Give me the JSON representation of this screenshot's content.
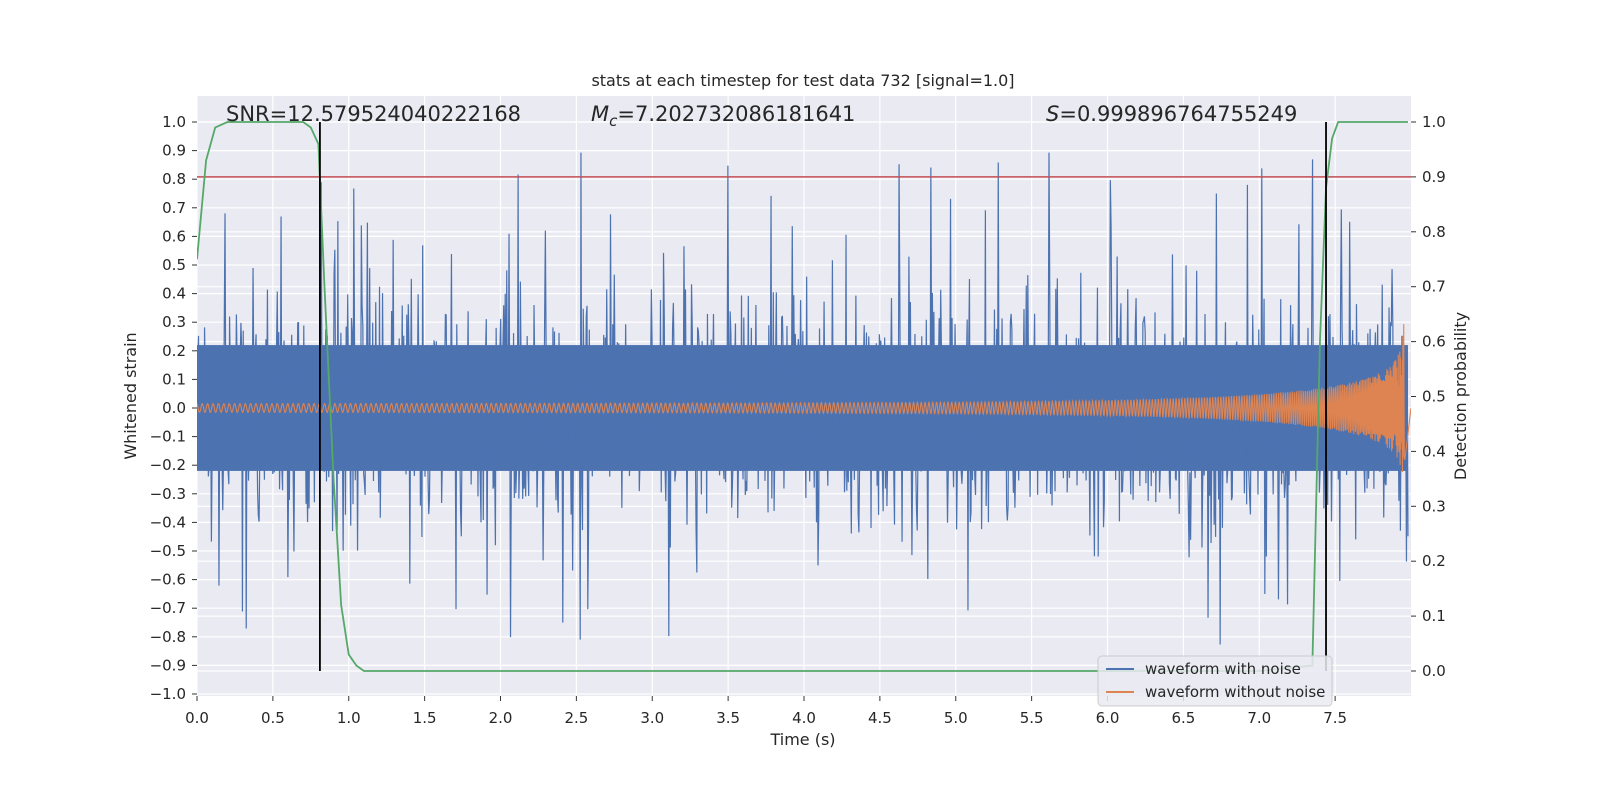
{
  "chart_data": {
    "type": "line",
    "title": "stats at each timestep for test data 732 [signal=1.0]",
    "xlabel": "Time (s)",
    "ylabel": "Whitened strain",
    "y2label": "Detection probability",
    "xlim": [
      0.0,
      8.0
    ],
    "ylim": [
      -1.02,
      1.05
    ],
    "y2lim": [
      -0.05,
      1.05
    ],
    "xticks": [
      "0.0",
      "0.5",
      "1.0",
      "1.5",
      "2.0",
      "2.5",
      "3.0",
      "3.5",
      "4.0",
      "4.5",
      "5.0",
      "5.5",
      "6.0",
      "6.5",
      "7.0",
      "7.5"
    ],
    "yticks": [
      "1.0",
      "0.9",
      "0.8",
      "0.7",
      "0.6",
      "0.5",
      "0.4",
      "0.3",
      "0.2",
      "0.1",
      "0.0",
      "−0.1",
      "−0.2",
      "−0.3",
      "−0.4",
      "−0.5",
      "−0.6",
      "−0.7",
      "−0.8",
      "−0.9",
      "−1.0"
    ],
    "y2ticks": [
      "1.0",
      "0.9",
      "0.8",
      "0.7",
      "0.6",
      "0.5",
      "0.4",
      "0.3",
      "0.2",
      "0.1",
      "0.0"
    ],
    "grid": true,
    "legend_position": "lower-right",
    "annotations": {
      "snr": "SNR=12.579524040222168",
      "mc_symbol": "M",
      "mc_sub": "c",
      "mc_value": "=7.202732086181641",
      "s_symbol": "S",
      "s_value": "=0.999896764755249"
    },
    "series": [
      {
        "name": "waveform with noise",
        "color": "#4c72b0",
        "x_range": [
          0.0,
          7.98
        ],
        "typical_envelope": 0.35,
        "peak_max": 1.0,
        "peak_min": -0.92
      },
      {
        "name": "waveform without noise",
        "color": "#dd8452",
        "x_range": [
          0.0,
          7.96
        ],
        "start_amplitude": 0.015,
        "end_amplitude": 0.5
      },
      {
        "name": "detection probability",
        "axis": "right",
        "color": "#55a868",
        "x": [
          0.0,
          0.06,
          0.12,
          0.2,
          0.3,
          0.5,
          0.7,
          0.75,
          0.8,
          0.84,
          0.9,
          0.95,
          1.0,
          1.05,
          1.1,
          1.3,
          2.0,
          3.0,
          5.0,
          7.0,
          7.35,
          7.4,
          7.44,
          7.48,
          7.52,
          7.6,
          7.8,
          7.98
        ],
        "y": [
          0.75,
          0.93,
          0.99,
          1.0,
          1.0,
          1.0,
          1.0,
          0.99,
          0.96,
          0.7,
          0.35,
          0.12,
          0.03,
          0.01,
          0.0,
          0.0,
          0.0,
          0.0,
          0.0,
          0.0,
          0.01,
          0.6,
          0.88,
          0.97,
          1.0,
          1.0,
          1.0,
          1.0
        ]
      },
      {
        "name": "threshold",
        "axis": "right",
        "color": "#c44e52",
        "y": 0.9
      }
    ],
    "vertical_lines": [
      0.81,
      7.44
    ]
  }
}
